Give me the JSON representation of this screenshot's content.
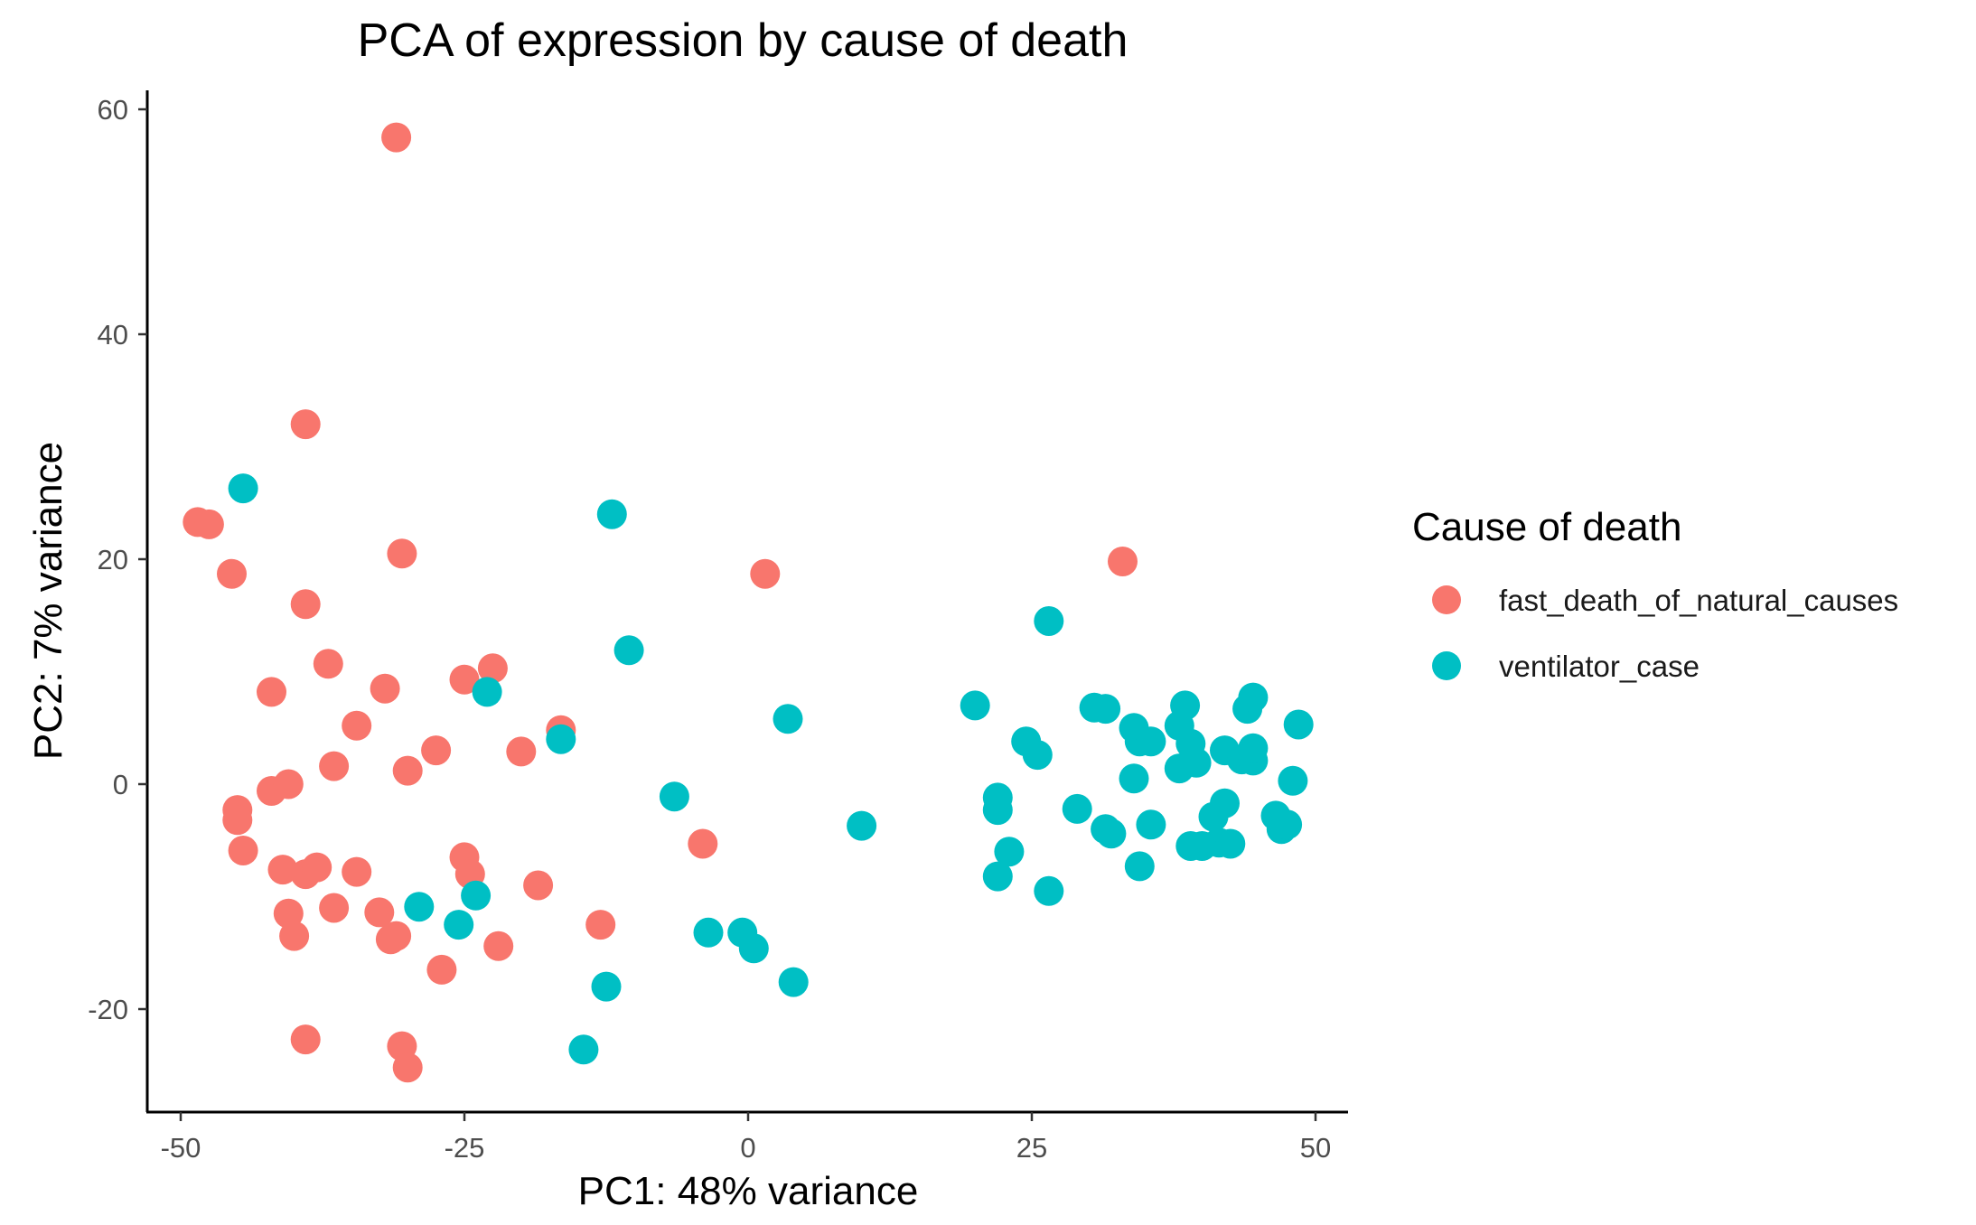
{
  "chart_data": {
    "type": "scatter",
    "title": "PCA of expression by cause of death",
    "xlabel": "PC1: 48% variance",
    "ylabel": "PC2: 7% variance",
    "xlim": [
      -53,
      53
    ],
    "ylim": [
      -29,
      62
    ],
    "x_ticks": [
      -50,
      -25,
      0,
      25,
      50
    ],
    "y_ticks": [
      -20,
      0,
      20,
      40,
      60
    ],
    "x_tick_labels": [
      "-50",
      "-25",
      "0",
      "25",
      "50"
    ],
    "y_tick_labels": [
      "-20",
      "0",
      "20",
      "40",
      "60"
    ],
    "grid": false,
    "legend": {
      "title": "Cause of death",
      "position": "right"
    },
    "series": [
      {
        "name": "fast_death_of_natural_causes",
        "color": "#F8766D",
        "points": [
          [
            -31.0,
            57.5
          ],
          [
            -39.0,
            32.0
          ],
          [
            -48.5,
            23.3
          ],
          [
            -47.5,
            23.1
          ],
          [
            -30.5,
            20.5
          ],
          [
            -45.5,
            18.7
          ],
          [
            -39.0,
            16.0
          ],
          [
            -37.0,
            10.7
          ],
          [
            -42.0,
            8.2
          ],
          [
            -32.0,
            8.5
          ],
          [
            -25.0,
            9.3
          ],
          [
            -22.5,
            10.3
          ],
          [
            -34.5,
            5.2
          ],
          [
            -16.5,
            4.8
          ],
          [
            -36.5,
            1.6
          ],
          [
            -30.0,
            1.2
          ],
          [
            -27.5,
            3.0
          ],
          [
            -20.0,
            2.9
          ],
          [
            -42.0,
            -0.6
          ],
          [
            -40.5,
            0.0
          ],
          [
            -45.0,
            -2.3
          ],
          [
            -45.0,
            -3.2
          ],
          [
            -44.5,
            -5.9
          ],
          [
            -41.0,
            -7.6
          ],
          [
            -39.0,
            -8.0
          ],
          [
            -38.0,
            -7.4
          ],
          [
            -34.5,
            -7.8
          ],
          [
            -25.0,
            -6.5
          ],
          [
            -24.5,
            -8.0
          ],
          [
            -18.5,
            -9.0
          ],
          [
            -40.5,
            -11.5
          ],
          [
            -36.5,
            -11.0
          ],
          [
            -32.5,
            -11.4
          ],
          [
            -40.0,
            -13.5
          ],
          [
            -31.5,
            -13.8
          ],
          [
            -31.0,
            -13.5
          ],
          [
            -22.0,
            -14.4
          ],
          [
            -13.0,
            -12.5
          ],
          [
            -27.0,
            -16.5
          ],
          [
            -39.0,
            -22.7
          ],
          [
            -30.5,
            -23.3
          ],
          [
            -30.0,
            -25.2
          ],
          [
            -4.0,
            -5.3
          ],
          [
            1.5,
            18.7
          ],
          [
            33.0,
            19.8
          ]
        ]
      },
      {
        "name": "ventilator_case",
        "color": "#00BFC4",
        "points": [
          [
            -44.5,
            26.3
          ],
          [
            -12.0,
            24.0
          ],
          [
            -10.5,
            11.9
          ],
          [
            -23.0,
            8.2
          ],
          [
            -16.5,
            4.0
          ],
          [
            3.5,
            5.8
          ],
          [
            -6.5,
            -1.1
          ],
          [
            10.0,
            -3.7
          ],
          [
            -29.0,
            -10.9
          ],
          [
            -24.0,
            -9.9
          ],
          [
            -25.5,
            -12.5
          ],
          [
            -3.5,
            -13.2
          ],
          [
            -0.5,
            -13.2
          ],
          [
            0.5,
            -14.6
          ],
          [
            4.0,
            -17.6
          ],
          [
            -12.5,
            -18.0
          ],
          [
            -14.5,
            -23.6
          ],
          [
            26.5,
            14.5
          ],
          [
            20.0,
            7.0
          ],
          [
            24.5,
            3.8
          ],
          [
            25.5,
            2.6
          ],
          [
            22.0,
            -1.2
          ],
          [
            22.0,
            -2.3
          ],
          [
            23.0,
            -6.0
          ],
          [
            22.0,
            -8.2
          ],
          [
            26.5,
            -9.5
          ],
          [
            29.0,
            -2.2
          ],
          [
            30.5,
            6.8
          ],
          [
            31.5,
            6.7
          ],
          [
            34.0,
            5.0
          ],
          [
            34.5,
            3.8
          ],
          [
            35.5,
            3.8
          ],
          [
            34.0,
            0.5
          ],
          [
            31.5,
            -4.0
          ],
          [
            32.0,
            -4.4
          ],
          [
            35.5,
            -3.6
          ],
          [
            34.5,
            -7.3
          ],
          [
            38.0,
            5.2
          ],
          [
            38.5,
            7.0
          ],
          [
            39.0,
            3.6
          ],
          [
            39.5,
            1.9
          ],
          [
            38.0,
            1.4
          ],
          [
            42.0,
            3.0
          ],
          [
            43.5,
            2.2
          ],
          [
            44.5,
            2.1
          ],
          [
            44.5,
            3.2
          ],
          [
            44.0,
            6.7
          ],
          [
            44.5,
            7.7
          ],
          [
            48.5,
            5.3
          ],
          [
            48.0,
            0.3
          ],
          [
            41.0,
            -2.9
          ],
          [
            42.0,
            -1.7
          ],
          [
            39.0,
            -5.5
          ],
          [
            40.0,
            -5.5
          ],
          [
            41.5,
            -5.2
          ],
          [
            42.5,
            -5.3
          ],
          [
            46.5,
            -2.8
          ],
          [
            47.0,
            -4.0
          ],
          [
            47.5,
            -3.6
          ]
        ]
      }
    ]
  }
}
